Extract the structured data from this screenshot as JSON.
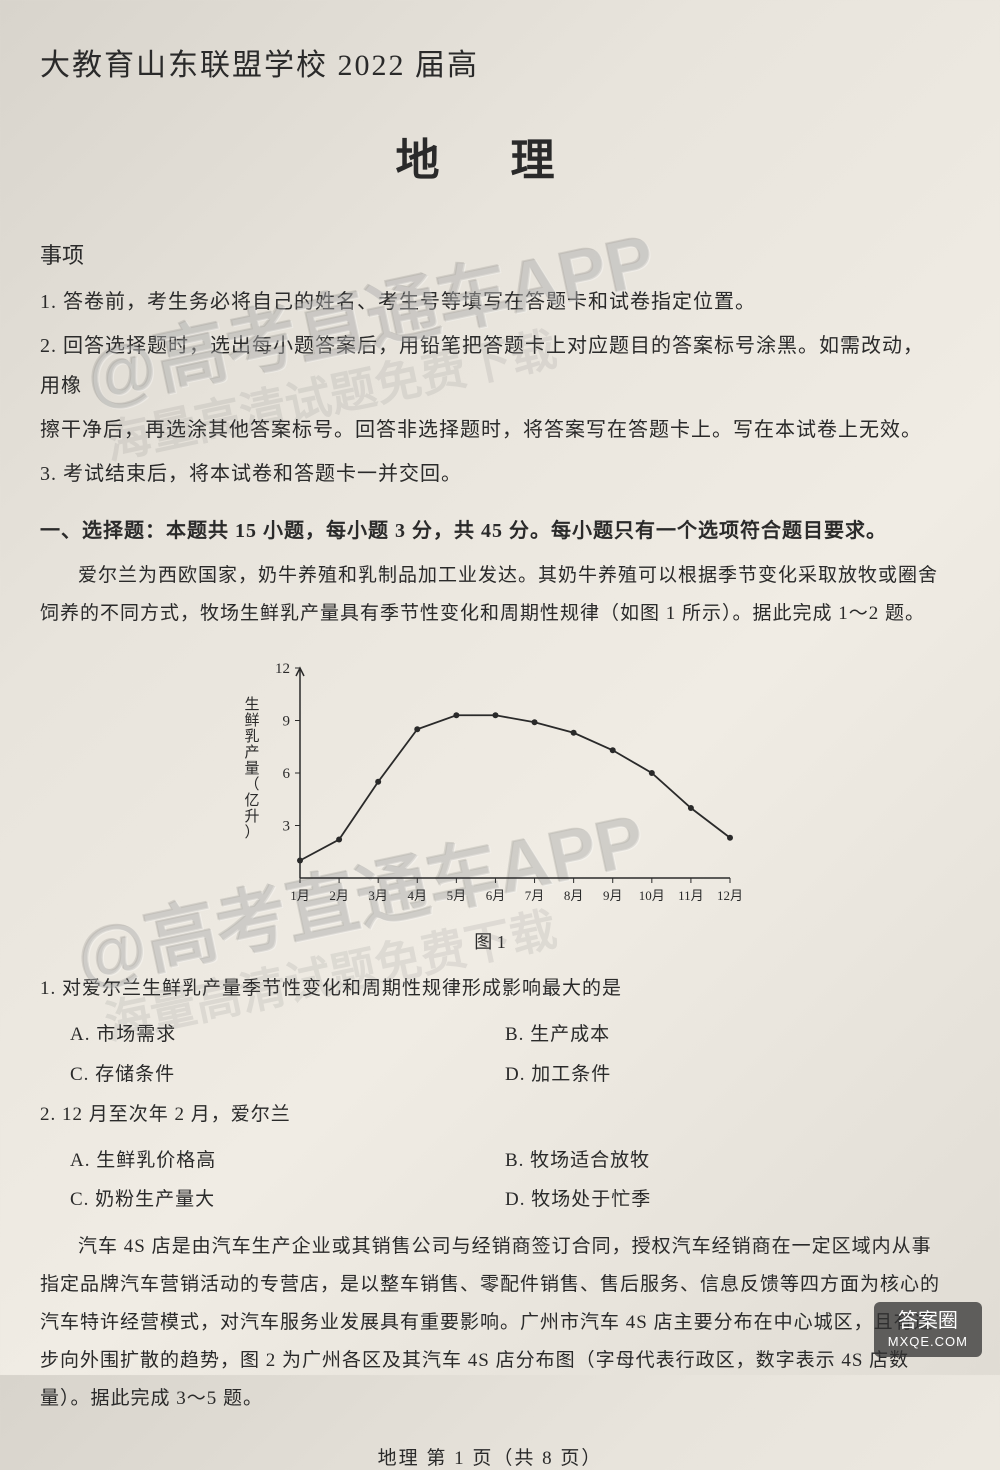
{
  "header": {
    "partial_title": "大教育山东联盟学校 2022 届高"
  },
  "main_title": "地 理",
  "notice_heading": "事项",
  "instructions": [
    "1. 答卷前，考生务必将自己的姓名、考生号等填写在答题卡和试卷指定位置。",
    "2. 回答选择题时，选出每小题答案后，用铅笔把答题卡上对应题目的答案标号涂黑。如需改动，用橡",
    "擦干净后，再选涂其他答案标号。回答非选择题时，将答案写在答题卡上。写在本试卷上无效。",
    "3. 考试结束后，将本试卷和答题卡一并交回。"
  ],
  "section1_title": "一、选择题：本题共 15 小题，每小题 3 分，共 45 分。每小题只有一个选项符合题目要求。",
  "passage1": "爱尔兰为西欧国家，奶牛养殖和乳制品加工业发达。其奶牛养殖可以根据季节变化采取放牧或圈舍饲养的不同方式，牧场生鲜乳产量具有季节性变化和周期性规律（如图 1 所示）。据此完成 1～2 题。",
  "chart": {
    "type": "line",
    "y_label": "生鲜乳产量（亿升）",
    "x_labels": [
      "1月",
      "2月",
      "3月",
      "4月",
      "5月",
      "6月",
      "7月",
      "8月",
      "9月",
      "10月",
      "11月",
      "12月"
    ],
    "y_ticks": [
      3,
      6,
      9,
      12
    ],
    "values": [
      1.0,
      2.2,
      5.5,
      8.5,
      9.3,
      9.3,
      8.9,
      8.3,
      7.3,
      6.0,
      4.0,
      2.3
    ],
    "line_color": "#2a2a2a",
    "axis_color": "#2a2a2a",
    "marker_style": "circle",
    "marker_size": 3,
    "caption": "图 1"
  },
  "q1": {
    "stem": "1. 对爱尔兰生鲜乳产量季节性变化和周期性规律形成影响最大的是",
    "A": "A. 市场需求",
    "B": "B. 生产成本",
    "C": "C. 存储条件",
    "D": "D. 加工条件"
  },
  "q2": {
    "stem": "2. 12 月至次年 2 月，爱尔兰",
    "A": "A. 生鲜乳价格高",
    "B": "B. 牧场适合放牧",
    "C": "C. 奶粉生产量大",
    "D": "D. 牧场处于忙季"
  },
  "passage2": "汽车 4S 店是由汽车生产企业或其销售公司与经销商签订合同，授权汽车经销商在一定区域内从事指定品牌汽车营销活动的专营店，是以整车销售、零配件销售、售后服务、信息反馈等四方面为核心的汽车特许经营模式，对汽车服务业发展具有重要影响。广州市汽车 4S 店主要分布在中心城区，且有逐步向外围扩散的趋势，图 2 为广州各区及其汽车 4S 店分布图（字母代表行政区，数字表示 4S 店数量）。据此完成 3～5 题。",
  "footer": "地理  第 1 页（共 8 页）",
  "watermarks": {
    "main": "@高考直通车APP",
    "sub": "海量高清试题免费下载"
  },
  "badge": {
    "line1": "答案圈",
    "line2": "MXQE.COM"
  }
}
